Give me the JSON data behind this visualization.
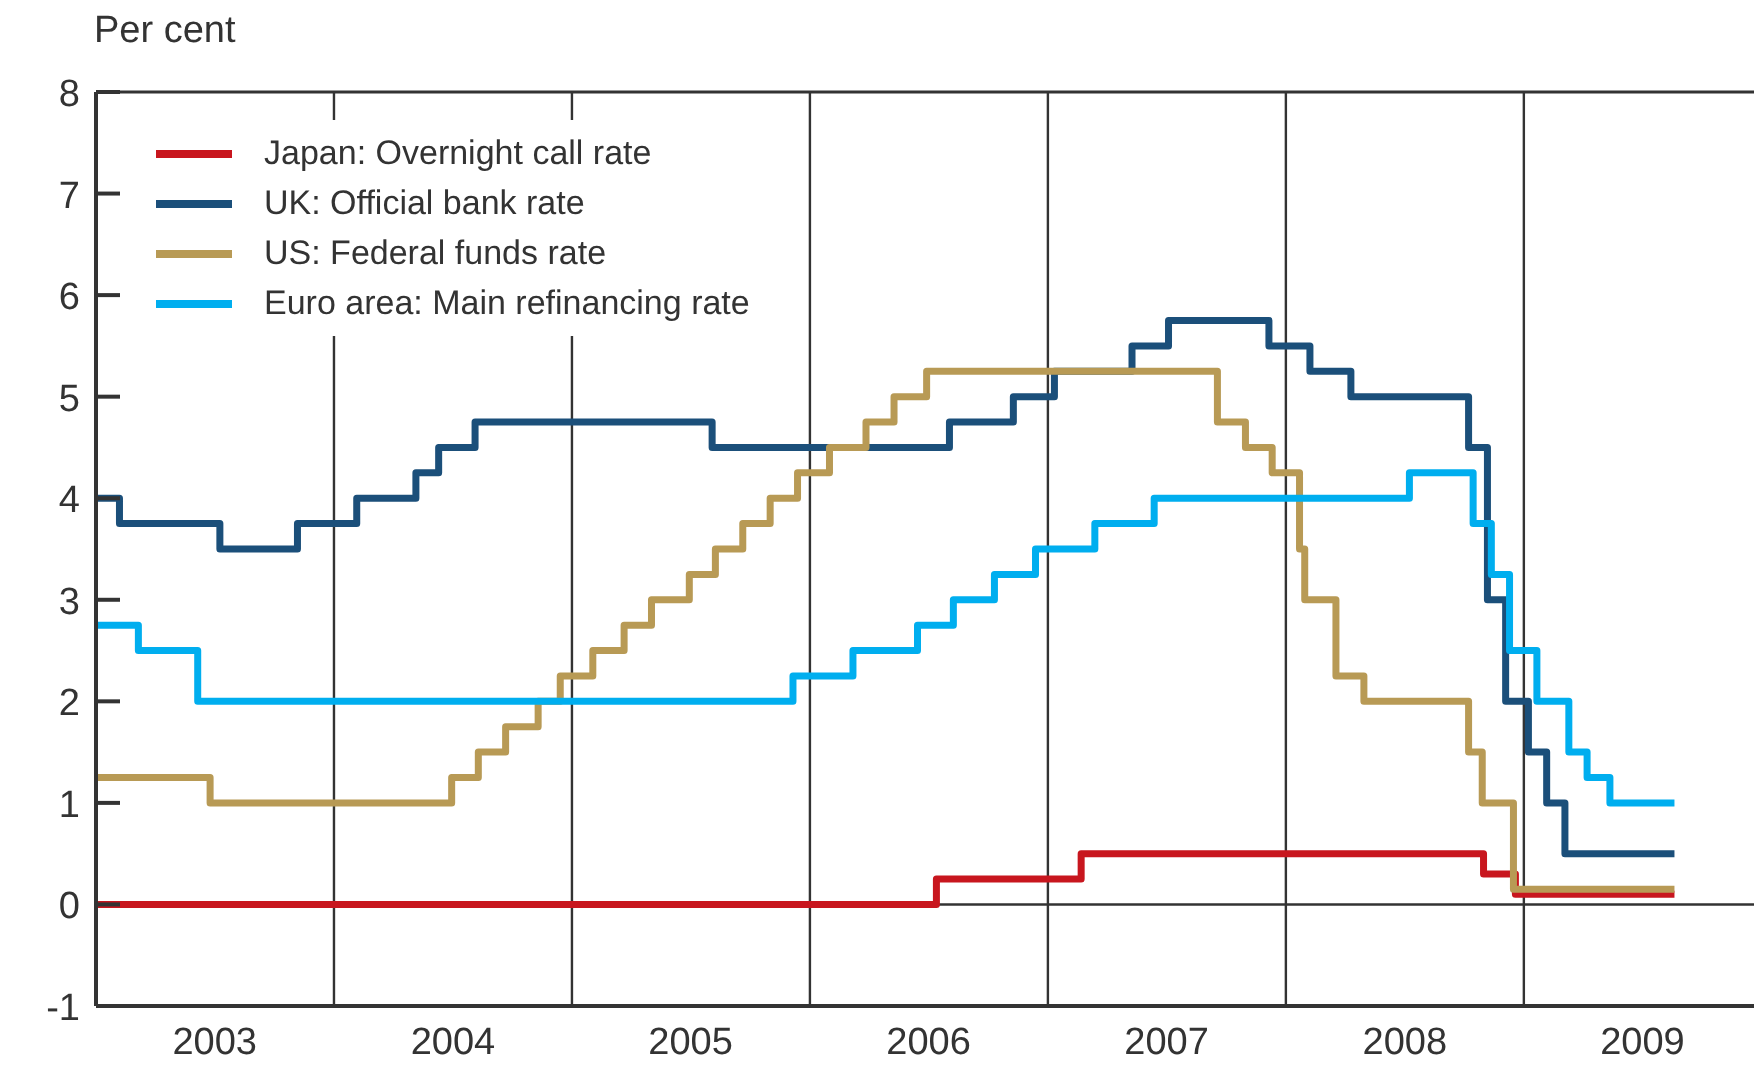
{
  "chart_data": {
    "type": "step",
    "ylabel": "Per cent",
    "xlim": [
      "2003-01-01",
      "2009-12-20"
    ],
    "xticks": [
      {
        "value": "2003-07-02",
        "label": "2003"
      },
      {
        "value": "2004-07-02",
        "label": "2004"
      },
      {
        "value": "2005-07-02",
        "label": "2005"
      },
      {
        "value": "2006-07-02",
        "label": "2006"
      },
      {
        "value": "2007-07-02",
        "label": "2007"
      },
      {
        "value": "2008-07-02",
        "label": "2008"
      },
      {
        "value": "2009-07-02",
        "label": "2009"
      }
    ],
    "ylim": [
      -1,
      8
    ],
    "yticks": [
      -1,
      0,
      1,
      2,
      3,
      4,
      5,
      6,
      7,
      8
    ],
    "grid": false,
    "legend": "top left",
    "ref_lines": [
      {
        "axis": "x",
        "value": "2004-01-01",
        "color": "#333333"
      },
      {
        "axis": "x",
        "value": "2005-01-01",
        "color": "#333333"
      },
      {
        "axis": "x",
        "value": "2006-01-01",
        "color": "#333333"
      },
      {
        "axis": "x",
        "value": "2007-01-01",
        "color": "#333333"
      },
      {
        "axis": "x",
        "value": "2008-01-01",
        "color": "#333333"
      },
      {
        "axis": "x",
        "value": "2009-01-01",
        "color": "#333333"
      },
      {
        "axis": "y",
        "value": 0,
        "color": "#333333"
      }
    ],
    "series": [
      {
        "name": "Japan: Overnight call rate",
        "color": "#c8161e",
        "x": [
          "2003-01-01",
          "2006-07-14",
          "2007-02-21",
          "2008-10-31",
          "2008-12-19",
          "2009-08-20"
        ],
        "values": [
          0,
          0.25,
          0.5,
          0.3,
          0.1,
          0.1
        ]
      },
      {
        "name": "UK: Official bank rate",
        "color": "#1b4f7a",
        "x": [
          "2003-01-01",
          "2003-02-06",
          "2003-07-10",
          "2003-11-06",
          "2004-02-05",
          "2004-05-06",
          "2004-06-10",
          "2004-08-05",
          "2005-08-04",
          "2006-08-03",
          "2006-11-09",
          "2007-01-11",
          "2007-05-10",
          "2007-07-05",
          "2007-12-06",
          "2008-02-07",
          "2008-04-10",
          "2008-10-08",
          "2008-11-06",
          "2008-12-04",
          "2009-01-08",
          "2009-02-05",
          "2009-03-05",
          "2009-08-20"
        ],
        "values": [
          4.0,
          3.75,
          3.5,
          3.75,
          4.0,
          4.25,
          4.5,
          4.75,
          4.5,
          4.75,
          5.0,
          5.25,
          5.5,
          5.75,
          5.5,
          5.25,
          5.0,
          4.5,
          3.0,
          2.0,
          1.5,
          1.0,
          0.5,
          0.5
        ]
      },
      {
        "name": "US: Federal funds rate",
        "color": "#b89a55",
        "x": [
          "2003-01-01",
          "2003-06-25",
          "2004-06-30",
          "2004-08-10",
          "2004-09-21",
          "2004-11-10",
          "2004-12-14",
          "2005-02-02",
          "2005-03-22",
          "2005-05-03",
          "2005-06-30",
          "2005-08-09",
          "2005-09-20",
          "2005-11-01",
          "2005-12-13",
          "2006-01-31",
          "2006-03-28",
          "2006-05-10",
          "2006-06-29",
          "2007-09-18",
          "2007-10-31",
          "2007-12-11",
          "2008-01-22",
          "2008-01-30",
          "2008-03-18",
          "2008-04-30",
          "2008-10-08",
          "2008-10-29",
          "2008-12-16",
          "2009-08-20"
        ],
        "values": [
          1.25,
          1.0,
          1.25,
          1.5,
          1.75,
          2.0,
          2.25,
          2.5,
          2.75,
          3.0,
          3.25,
          3.5,
          3.75,
          4.0,
          4.25,
          4.5,
          4.75,
          5.0,
          5.25,
          4.75,
          4.5,
          4.25,
          3.5,
          3.0,
          2.25,
          2.0,
          1.5,
          1.0,
          0.15,
          0.15
        ]
      },
      {
        "name": "Euro area: Main refinancing rate",
        "color": "#00aeef",
        "x": [
          "2003-01-01",
          "2003-03-07",
          "2003-06-06",
          "2005-12-06",
          "2006-03-08",
          "2006-06-15",
          "2006-08-09",
          "2006-10-11",
          "2006-12-13",
          "2007-03-14",
          "2007-06-13",
          "2008-07-09",
          "2008-10-15",
          "2008-11-12",
          "2008-12-10",
          "2009-01-21",
          "2009-03-11",
          "2009-04-08",
          "2009-05-13",
          "2009-08-20"
        ],
        "values": [
          2.75,
          2.5,
          2.0,
          2.25,
          2.5,
          2.75,
          3.0,
          3.25,
          3.5,
          3.75,
          4.0,
          4.25,
          3.75,
          3.25,
          2.5,
          2.0,
          1.5,
          1.25,
          1.0,
          1.0
        ]
      }
    ]
  }
}
